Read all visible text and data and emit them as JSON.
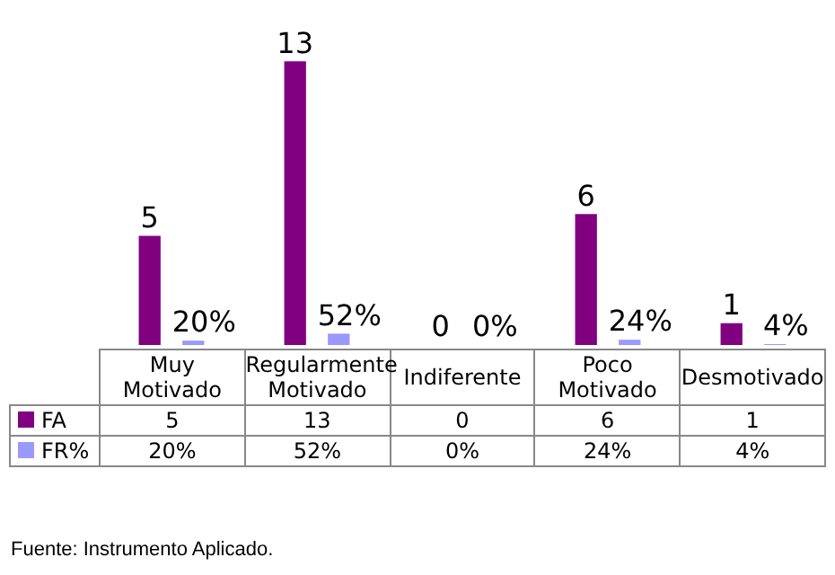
{
  "chart_data": {
    "type": "bar",
    "categories": [
      "Muy Motivado",
      "Regularmente Motivado",
      "Indiferente",
      "Poco Motivado",
      "Desmotivado"
    ],
    "series": [
      {
        "name": "FA",
        "color": "#800080",
        "values": [
          5,
          13,
          0,
          6,
          1
        ],
        "value_labels": [
          "5",
          "13",
          "0",
          "6",
          "1"
        ]
      },
      {
        "name": "FR%",
        "color": "#9999ff",
        "values": [
          0.2,
          0.52,
          0,
          0.24,
          0.04
        ],
        "value_labels": [
          "20%",
          "52%",
          "0%",
          "24%",
          "4%"
        ]
      }
    ],
    "data_labels": true,
    "legend": "bottom",
    "annotations": [
      "Fuente: Instrumento Aplicado."
    ]
  }
}
